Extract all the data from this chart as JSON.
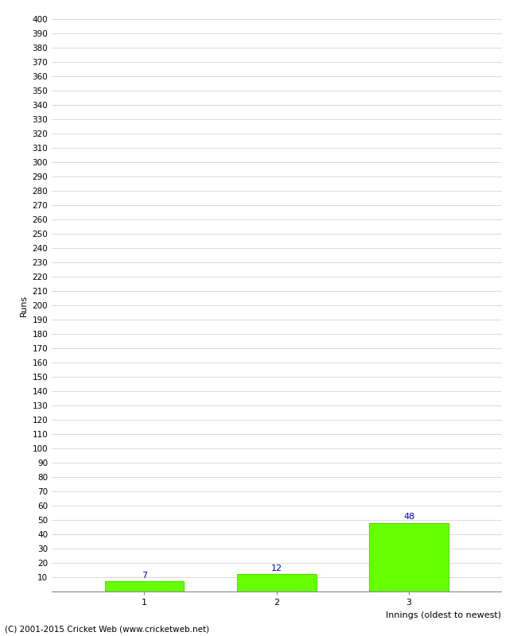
{
  "categories": [
    "1",
    "2",
    "3"
  ],
  "values": [
    7,
    12,
    48
  ],
  "bar_color": "#66ff00",
  "bar_edge_color": "#55dd00",
  "label_color": "#0000cc",
  "xlabel": "Innings (oldest to newest)",
  "ylabel": "Runs",
  "ylim": [
    0,
    400
  ],
  "ytick_step": 10,
  "background_color": "#ffffff",
  "grid_color": "#cccccc",
  "footer": "(C) 2001-2015 Cricket Web (www.cricketweb.net)",
  "bar_width": 0.6,
  "figsize": [
    6.5,
    8.0
  ],
  "dpi": 100
}
